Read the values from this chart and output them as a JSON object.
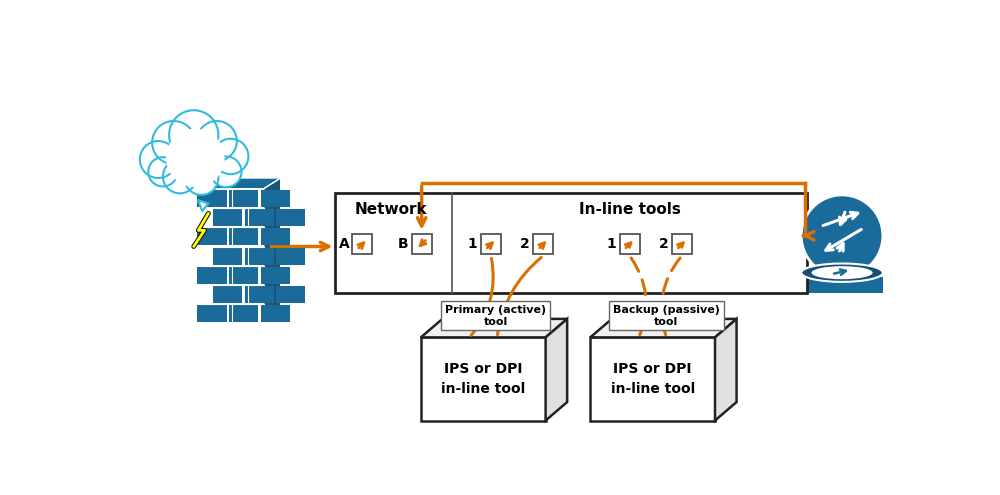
{
  "bg_color": "#ffffff",
  "orange": "#d97000",
  "dark_blue": "#1a6b9a",
  "cloud_blue": "#33bbdd",
  "network_label": "Network",
  "inline_tools_label": "In-line tools",
  "primary_label": "Primary (active)\ntool",
  "backup_label": "Backup (passive)\ntool",
  "ips_label": "IPS or DPI\nin-line tool",
  "port_labels": [
    "A",
    "B",
    "1",
    "2",
    "1",
    "2"
  ]
}
